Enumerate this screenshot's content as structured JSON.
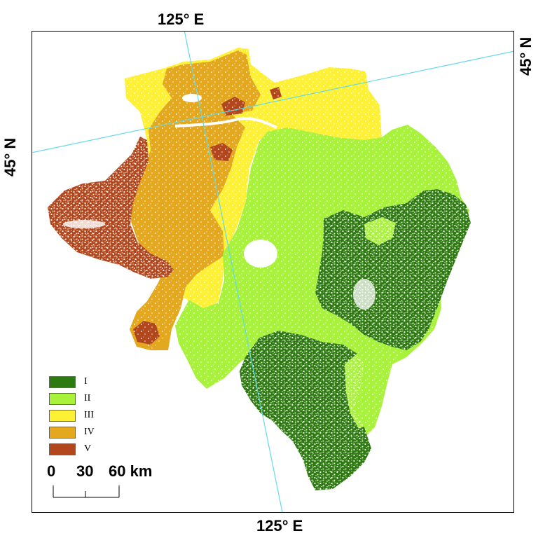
{
  "map": {
    "graticule": {
      "lon_label_top": "125° E",
      "lon_label_bottom": "125° E",
      "lat_label_left": "45° N",
      "lat_label_right": "45° N"
    },
    "legend": {
      "items": [
        {
          "label": "I",
          "color": "#2d7a10"
        },
        {
          "label": "II",
          "color": "#a8f23c"
        },
        {
          "label": "III",
          "color": "#fef035"
        },
        {
          "label": "IV",
          "color": "#e4a81f"
        },
        {
          "label": "V",
          "color": "#b2461d"
        }
      ]
    },
    "scale_bar": {
      "ticks": [
        "0",
        "30",
        "60 km"
      ]
    },
    "colors": {
      "graticule_line": "#66d9e8",
      "frame": "#000000",
      "background": "#ffffff"
    }
  }
}
